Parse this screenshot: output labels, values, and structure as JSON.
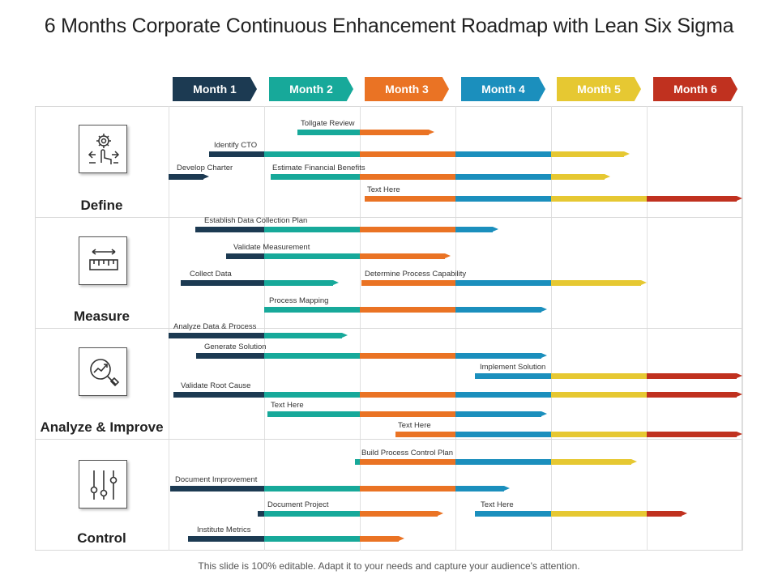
{
  "title": "6 Months Corporate Continuous Enhancement Roadmap with Lean Six Sigma",
  "footer": "This slide is 100% editable. Adapt it to your needs and capture your audience's attention.",
  "months": [
    {
      "label": "Month 1",
      "color": "#1c3a52"
    },
    {
      "label": "Month 2",
      "color": "#17a99a"
    },
    {
      "label": "Month 3",
      "color": "#ea7324"
    },
    {
      "label": "Month 4",
      "color": "#1b8fbd"
    },
    {
      "label": "Month 5",
      "color": "#e6c832"
    },
    {
      "label": "Month 6",
      "color": "#c0311f"
    }
  ],
  "phases": [
    {
      "label": "Define",
      "icon": "gear-hand-icon"
    },
    {
      "label": "Measure",
      "icon": "ruler-icon"
    },
    {
      "label": "Analyze & Improve",
      "icon": "magnifier-chart-icon"
    },
    {
      "label": "Control",
      "icon": "sliders-icon"
    }
  ],
  "tasks": [
    {
      "label": "Tollgate Review",
      "start": 1.35,
      "end": 2.78
    },
    {
      "label": "Identify CTO",
      "start": 0.42,
      "end": 4.82
    },
    {
      "label": "Develop Charter",
      "start": 0.0,
      "end": 0.42
    },
    {
      "label": "Estimate Financial Benefits",
      "start": 1.07,
      "end": 4.62
    },
    {
      "label": "Text Here",
      "start": 2.05,
      "end": 6.0
    },
    {
      "label": "Establish Data Collection Plan",
      "start": 0.28,
      "end": 3.45
    },
    {
      "label": "Validate Measurement",
      "start": 0.6,
      "end": 2.95
    },
    {
      "label": "Collect Data",
      "start": 0.13,
      "end": 1.78
    },
    {
      "label": "Determine Process Capability",
      "start": 2.02,
      "end": 5.0
    },
    {
      "label": "Process Mapping",
      "start": 1.0,
      "end": 3.96
    },
    {
      "label": "Analyze Data & Process",
      "start": 0.0,
      "end": 1.87
    },
    {
      "label": "Generate Solution",
      "start": 0.29,
      "end": 3.96
    },
    {
      "label": "Implement Solution",
      "start": 3.2,
      "end": 6.0
    },
    {
      "label": "Validate Root Cause",
      "start": 0.05,
      "end": 6.0
    },
    {
      "label": "Text Here",
      "start": 1.03,
      "end": 3.96
    },
    {
      "label": "Text Here",
      "start": 2.37,
      "end": 6.0
    },
    {
      "label": "Build Process Control Plan",
      "start": 1.95,
      "end": 4.9
    },
    {
      "label": "Document Improvement",
      "start": 0.02,
      "end": 3.57
    },
    {
      "label": "Document Project",
      "start": 0.93,
      "end": 2.87
    },
    {
      "label": "Text Here",
      "start": 3.2,
      "end": 5.42
    },
    {
      "label": "Institute Metrics",
      "start": 0.2,
      "end": 2.47
    }
  ]
}
